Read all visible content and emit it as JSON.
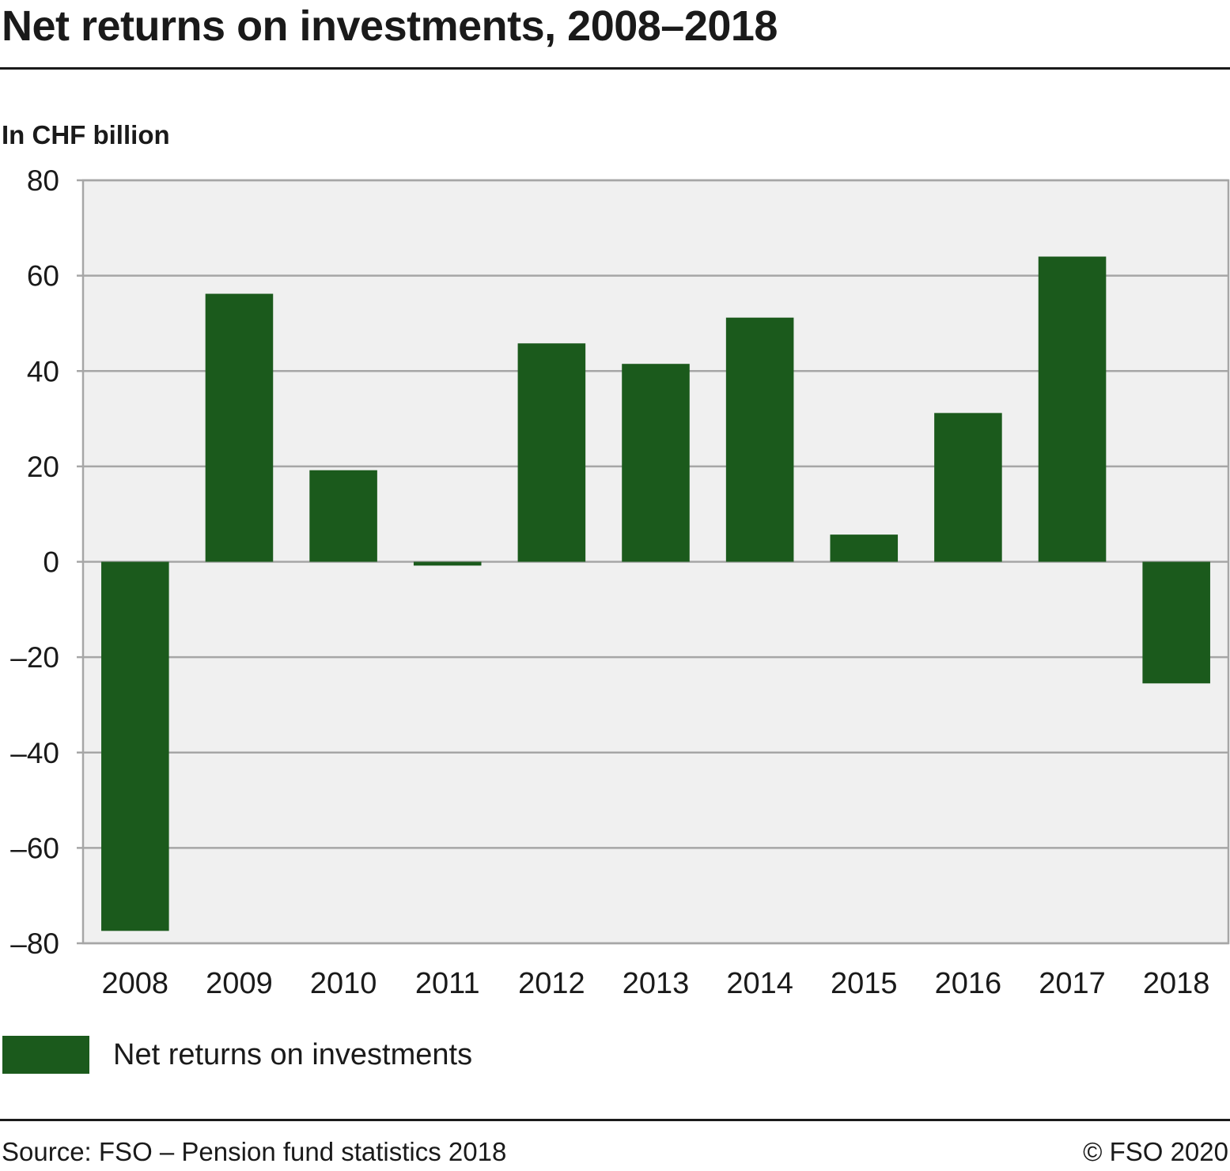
{
  "title": "Net returns on investments, 2008–2018",
  "unit_label": "In CHF billion",
  "legend": {
    "label": "Net returns on investments",
    "color": "#1b5a1c"
  },
  "footer": {
    "source": "Source: FSO – Pension fund statistics 2018",
    "copyright": "© FSO 2020"
  },
  "colors": {
    "bar": "#1b5a1c",
    "plot_background": "#f0f0f0",
    "grid": "#a6a6a6"
  },
  "chart_data": {
    "type": "bar",
    "title": "Net returns on investments, 2008–2018",
    "xlabel": "",
    "ylabel": "In CHF billion",
    "ylim": [
      -80,
      80
    ],
    "yticks": [
      80,
      60,
      40,
      20,
      0,
      -20,
      -40,
      -60,
      -80
    ],
    "ytick_labels": [
      "80",
      "60",
      "40",
      "20",
      "0",
      "–20",
      "–40",
      "–60",
      "–80"
    ],
    "grid": true,
    "legend_position": "bottom-left",
    "categories": [
      "2008",
      "2009",
      "2010",
      "2011",
      "2012",
      "2013",
      "2014",
      "2015",
      "2016",
      "2017",
      "2018"
    ],
    "series": [
      {
        "name": "Net returns on investments",
        "values": [
          -77.4,
          56.2,
          19.2,
          -0.8,
          45.8,
          41.5,
          51.2,
          5.7,
          31.2,
          64.0,
          -25.5
        ]
      }
    ]
  }
}
